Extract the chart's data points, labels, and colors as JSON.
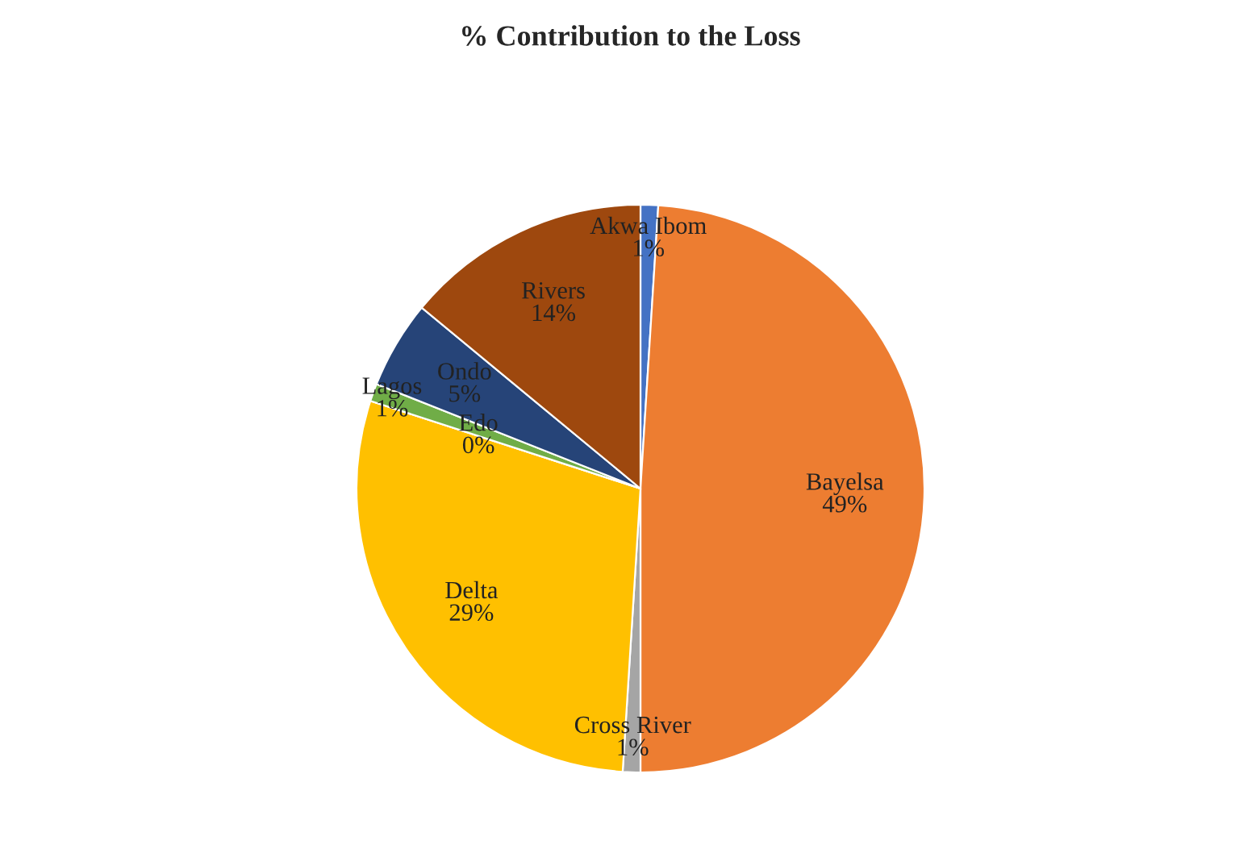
{
  "chart_data": {
    "type": "pie",
    "title": "% Contribution to the Loss",
    "categories": [
      "Akwa Ibom",
      "Bayelsa",
      "Cross River",
      "Delta",
      "Edo",
      "Lagos",
      "Ondo",
      "Rivers"
    ],
    "values": [
      1,
      49,
      1,
      29,
      0,
      1,
      5,
      14
    ],
    "value_labels": [
      "1%",
      "49%",
      "1%",
      "29%",
      "0%",
      "1%",
      "5%",
      "14%"
    ],
    "colors": [
      "#4472c4",
      "#ed7d31",
      "#a5a5a5",
      "#ffc000",
      "#5b9bd5",
      "#70ad47",
      "#264478",
      "#9e480e"
    ],
    "legend": false
  }
}
